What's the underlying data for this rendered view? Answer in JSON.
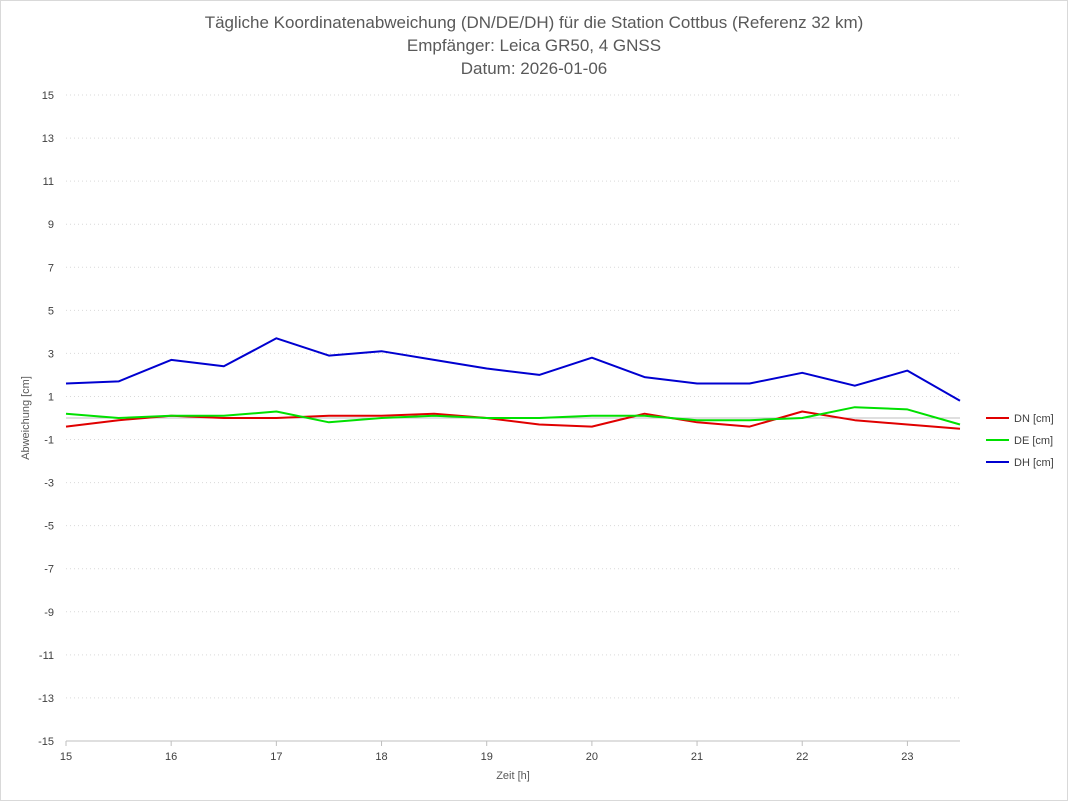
{
  "chart_data": {
    "type": "line",
    "title": [
      "Tägliche Koordinatenabweichung (DN/DE/DH) für die Station Cottbus (Referenz 32 km)",
      "Empfänger: Leica GR50, 4 GNSS",
      "Datum: 2026-01-06"
    ],
    "xlabel": "Zeit [h]",
    "ylabel": "Abweichung [cm]",
    "xlim": [
      15,
      23.5
    ],
    "ylim": [
      -15,
      15
    ],
    "xticks": [
      "15",
      "16",
      "17",
      "18",
      "19",
      "20",
      "21",
      "22",
      "23"
    ],
    "xtick_values": [
      15,
      16,
      17,
      18,
      19,
      20,
      21,
      22,
      23
    ],
    "yticks": [
      "15",
      "13",
      "11",
      "9",
      "7",
      "5",
      "3",
      "1",
      "-1",
      "-3",
      "-5",
      "-7",
      "-9",
      "-11",
      "-13",
      "-15"
    ],
    "ytick_values": [
      15,
      13,
      11,
      9,
      7,
      5,
      3,
      1,
      -1,
      -3,
      -5,
      -7,
      -9,
      -11,
      -13,
      -15
    ],
    "grid": "horizontal dotted",
    "legend_position": "right",
    "x": [
      15.0,
      15.5,
      16.0,
      16.5,
      17.0,
      17.5,
      18.0,
      18.5,
      19.0,
      19.5,
      20.0,
      20.5,
      21.0,
      21.5,
      22.0,
      22.5,
      23.0,
      23.5
    ],
    "series": [
      {
        "name": "DN [cm]",
        "color": "#e00000",
        "values": [
          -0.4,
          -0.1,
          0.1,
          0.0,
          0.0,
          0.1,
          0.1,
          0.2,
          0.0,
          -0.3,
          -0.4,
          0.2,
          -0.2,
          -0.4,
          0.3,
          -0.1,
          -0.3,
          -0.5
        ]
      },
      {
        "name": "DE [cm]",
        "color": "#00e000",
        "values": [
          0.2,
          0.0,
          0.1,
          0.1,
          0.3,
          -0.2,
          0.0,
          0.1,
          0.0,
          0.0,
          0.1,
          0.1,
          -0.1,
          -0.1,
          0.0,
          0.5,
          0.4,
          -0.3
        ]
      },
      {
        "name": "DH [cm]",
        "color": "#0000d0",
        "values": [
          1.6,
          1.7,
          2.7,
          2.4,
          3.7,
          2.9,
          3.1,
          2.7,
          2.3,
          2.0,
          2.8,
          1.9,
          1.6,
          1.6,
          2.1,
          1.5,
          2.2,
          0.8
        ]
      }
    ]
  }
}
